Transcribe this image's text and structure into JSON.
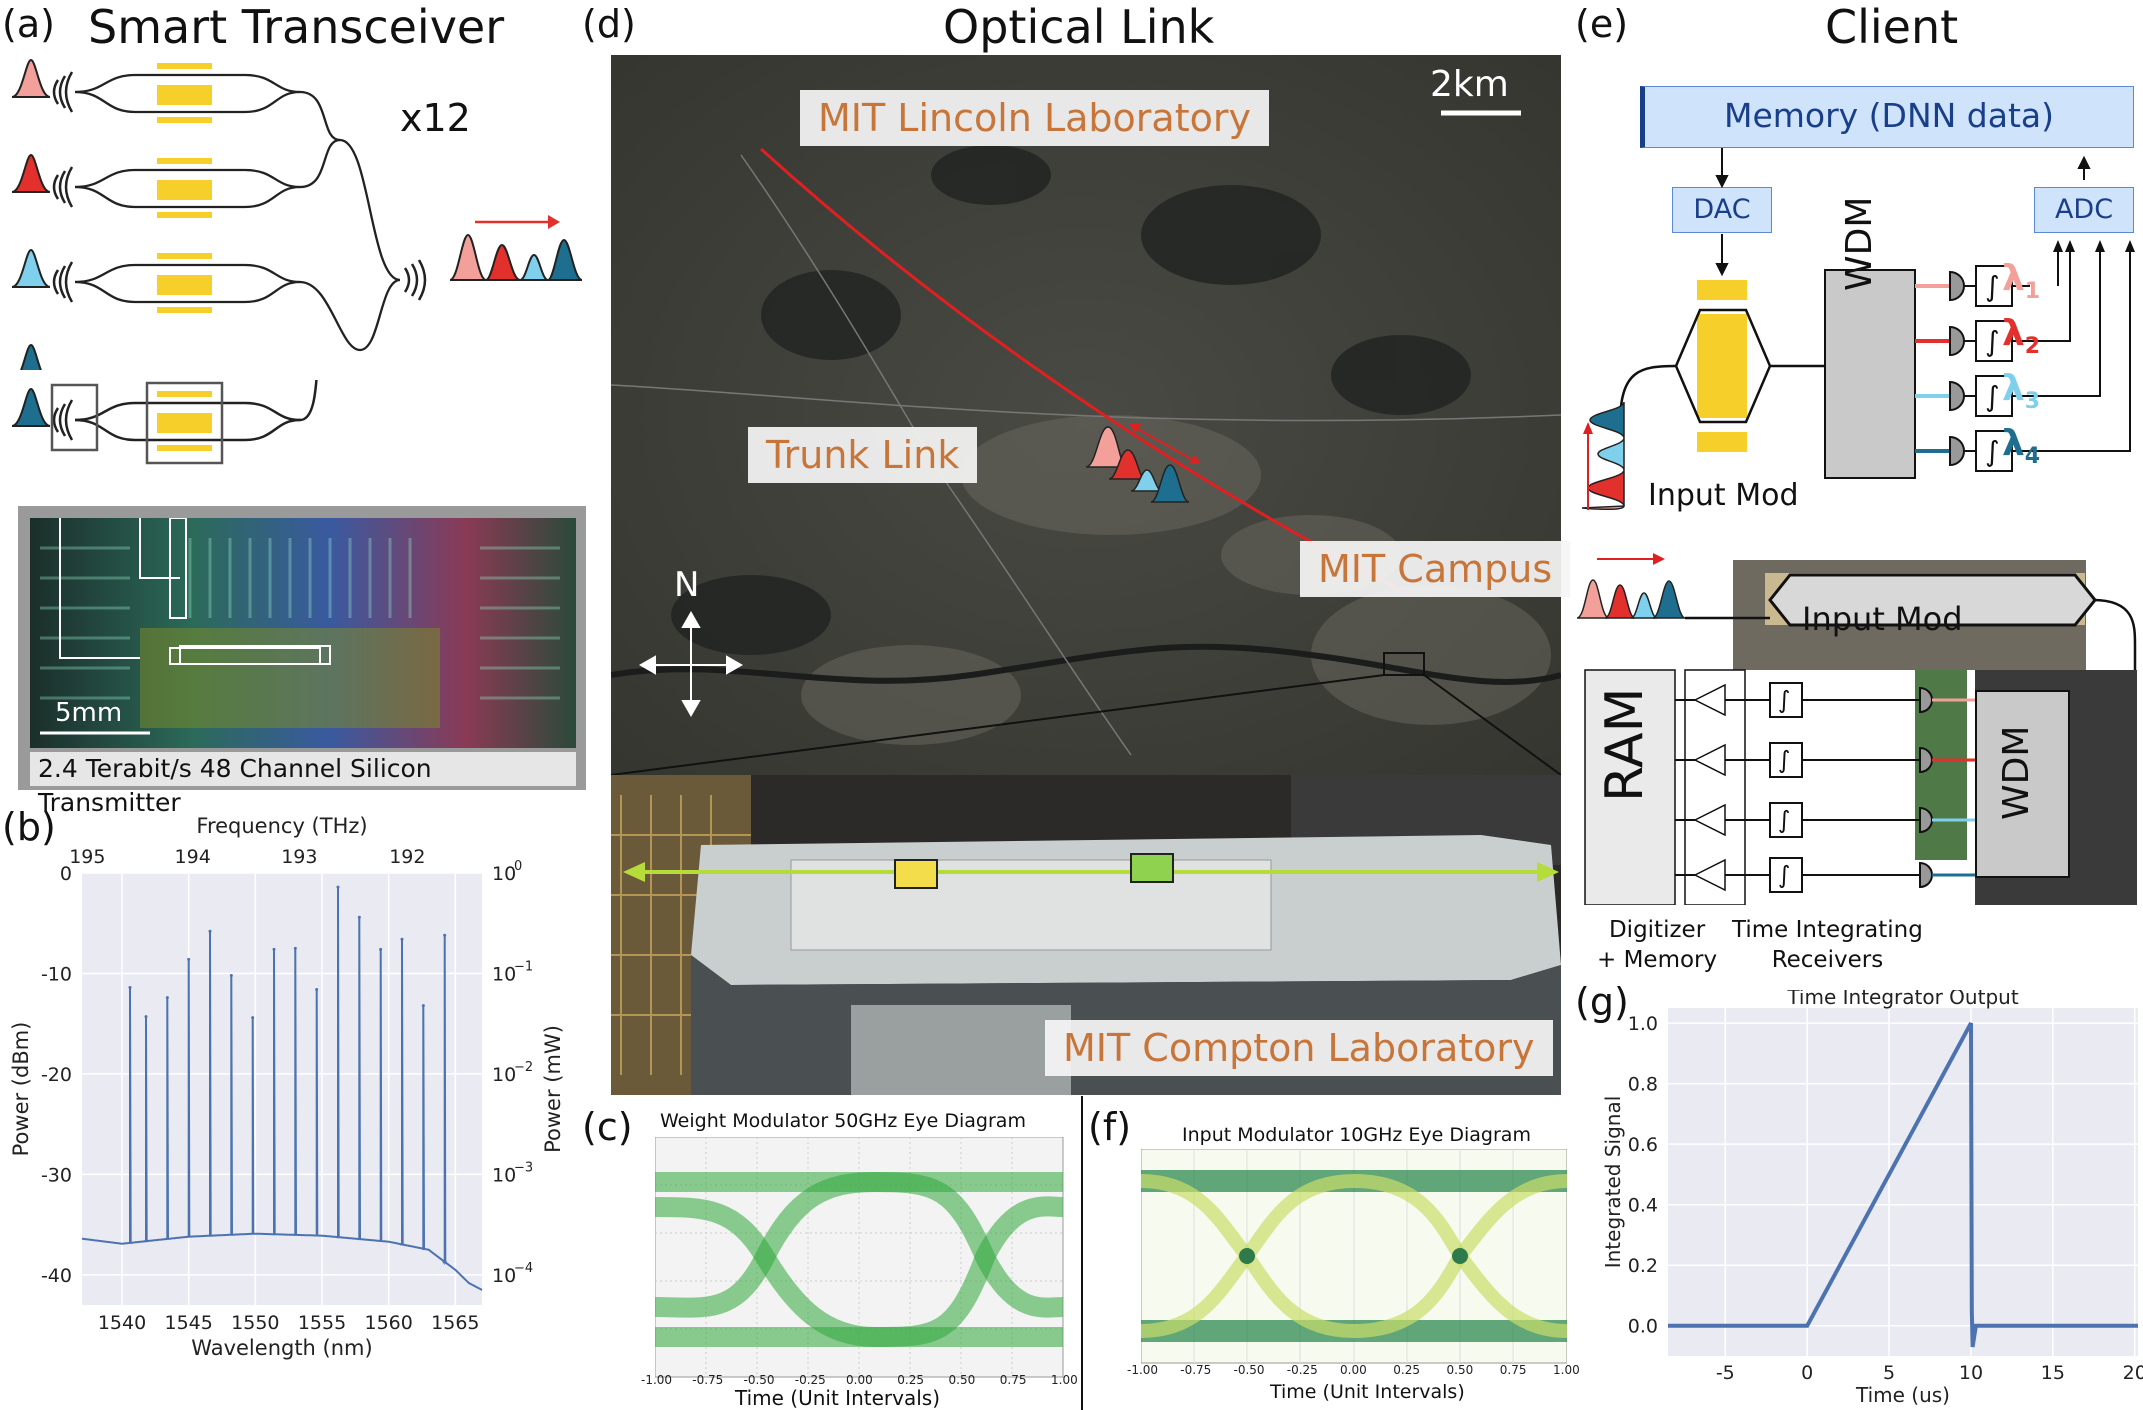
{
  "panels": {
    "a": {
      "letter": "(a)",
      "title": "Smart Transceiver",
      "multiplier": "x12",
      "scale_bar": "5mm",
      "caption": "2.4 Terabit/s 48 Channel Silicon Transmitter"
    },
    "d": {
      "letter": "(d)",
      "title": "Optical Link",
      "scale_bar": "2km",
      "compass": "N",
      "labels": {
        "lincoln": "MIT Lincoln Laboratory",
        "trunk": "Trunk Link",
        "campus": "MIT Campus",
        "compton": "MIT Compton Laboratory"
      }
    },
    "e": {
      "letter": "(e)",
      "title": "Client",
      "memory": "Memory (DNN data)",
      "dac": "DAC",
      "adc": "ADC",
      "wdm": "WDM",
      "input_mod": "Input Mod",
      "ram": "RAM",
      "digitizer": "Digitizer\n+ Memory",
      "receivers": "Time Integrating\nReceivers",
      "lambdas": [
        "λ",
        "λ",
        "λ",
        "λ"
      ],
      "lambda_subs": [
        "1",
        "2",
        "3",
        "4"
      ]
    },
    "c": {
      "letter": "(c)",
      "title": "Weight Modulator 50GHz Eye Diagram",
      "xlabel": "Time (Unit Intervals)",
      "xticks": [
        "-1.00",
        "-0.75",
        "-0.50",
        "-0.25",
        "0.00",
        "0.25",
        "0.50",
        "0.75",
        "1.00"
      ]
    },
    "f": {
      "letter": "(f)",
      "title": "Input Modulator 10GHz Eye Diagram",
      "xlabel": "Time (Unit Intervals)",
      "xticks": [
        "-1.00",
        "-0.75",
        "-0.50",
        "-0.25",
        "0.00",
        "0.25",
        "0.50",
        "0.75",
        "1.00"
      ]
    },
    "b": {
      "letter": "(b)"
    },
    "g": {
      "letter": "(g)"
    }
  },
  "colors": {
    "pulse1": "#f4a09a",
    "pulse2": "#e2302c",
    "pulse3": "#7fd0ec",
    "pulse4": "#1e6f8f",
    "gold": "#f7cf2a",
    "memory_bg": "#cfe3fb",
    "memory_text": "#1a3f8a",
    "line_blue": "#4573b8",
    "label_orange": "#c8753a"
  },
  "chart_data": [
    {
      "type": "line",
      "panel": "b",
      "title": "",
      "xlabel": "Wavelength (nm)",
      "ylabel": "Power (dBm)",
      "top_xlabel": "Frequency (THz)",
      "right_ylabel": "Power (mW)",
      "xlim": [
        1537,
        1567
      ],
      "ylim": [
        -43,
        0
      ],
      "xticks": [
        1540,
        1545,
        1550,
        1555,
        1560,
        1565
      ],
      "yticks": [
        0,
        -10,
        -20,
        -30,
        -40
      ],
      "top_ticks": [
        {
          "label": "192",
          "x": 1561.4
        },
        {
          "label": "193",
          "x": 1553.3
        },
        {
          "label": "194",
          "x": 1545.3
        },
        {
          "label": "195",
          "x": 1537.4
        }
      ],
      "right_ticks": [
        {
          "label": "10",
          "sup": "0",
          "y": 0
        },
        {
          "label": "10",
          "sup": "−1",
          "y": -10
        },
        {
          "label": "10",
          "sup": "−2",
          "y": -20
        },
        {
          "label": "10",
          "sup": "−3",
          "y": -30
        },
        {
          "label": "10",
          "sup": "−4",
          "y": -40
        }
      ],
      "baseline": [
        [
          1537,
          -36.4
        ],
        [
          1540,
          -36.9
        ],
        [
          1545,
          -36.2
        ],
        [
          1550,
          -35.9
        ],
        [
          1555,
          -36.1
        ],
        [
          1560,
          -36.7
        ],
        [
          1563,
          -37.5
        ],
        [
          1565,
          -39.5
        ],
        [
          1566,
          -40.8
        ],
        [
          1567,
          -41.5
        ]
      ],
      "peaks": [
        [
          1540.6,
          -11.4
        ],
        [
          1541.8,
          -14.3
        ],
        [
          1543.4,
          -12.4
        ],
        [
          1545.0,
          -8.6
        ],
        [
          1546.6,
          -5.8
        ],
        [
          1548.2,
          -10.2
        ],
        [
          1549.8,
          -14.4
        ],
        [
          1551.4,
          -7.6
        ],
        [
          1553.0,
          -7.5
        ],
        [
          1554.6,
          -11.6
        ],
        [
          1556.2,
          -1.4
        ],
        [
          1557.8,
          -4.4
        ],
        [
          1559.4,
          -7.6
        ],
        [
          1561.0,
          -6.6
        ],
        [
          1562.6,
          -13.2
        ],
        [
          1564.2,
          -6.2
        ]
      ]
    },
    {
      "type": "line",
      "panel": "g",
      "title": "Time Integrator Output",
      "xlabel": "Time (us)",
      "ylabel": "Integrated Signal",
      "xlim": [
        -8.5,
        20.2
      ],
      "ylim": [
        -0.1,
        1.05
      ],
      "xticks": [
        -5,
        0,
        5,
        10,
        15,
        20
      ],
      "yticks": [
        0.0,
        0.2,
        0.4,
        0.6,
        0.8,
        1.0
      ],
      "points": [
        [
          -8.5,
          0
        ],
        [
          0,
          0
        ],
        [
          10,
          1.0
        ],
        [
          10.05,
          0.05
        ],
        [
          10.1,
          -0.07
        ],
        [
          10.3,
          0
        ],
        [
          20.2,
          0
        ]
      ]
    }
  ]
}
